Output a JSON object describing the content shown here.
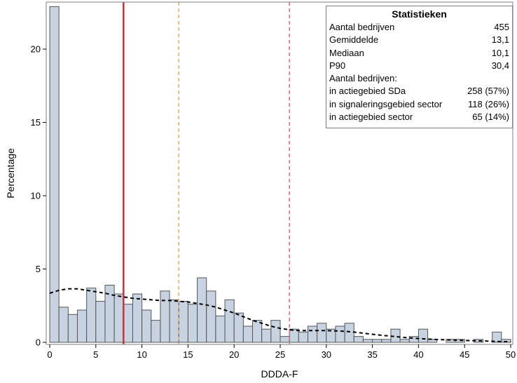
{
  "chart_data": {
    "type": "histogram",
    "xlabel": "DDDA-F",
    "ylabel": "Percentage",
    "xlim": [
      0,
      50
    ],
    "ylim": [
      0,
      23
    ],
    "x_ticks": [
      0,
      5,
      10,
      15,
      20,
      25,
      30,
      35,
      40,
      45,
      50
    ],
    "y_ticks": [
      0,
      5,
      10,
      15,
      20
    ],
    "bin_width": 1,
    "bin_starts": [
      0,
      1,
      2,
      3,
      4,
      5,
      6,
      7,
      8,
      9,
      10,
      11,
      12,
      13,
      14,
      15,
      16,
      17,
      18,
      19,
      20,
      21,
      22,
      23,
      24,
      25,
      26,
      27,
      28,
      29,
      30,
      31,
      32,
      33,
      34,
      35,
      36,
      37,
      38,
      39,
      40,
      41,
      42,
      43,
      44,
      45,
      46,
      47,
      48,
      49
    ],
    "values": [
      22.9,
      2.4,
      1.9,
      2.2,
      3.7,
      2.8,
      3.9,
      3.3,
      2.6,
      3.3,
      2.2,
      1.5,
      3.5,
      2.9,
      2.8,
      2.6,
      4.4,
      3.5,
      1.8,
      2.9,
      2.0,
      1.1,
      1.5,
      0.9,
      1.5,
      0.4,
      0.9,
      0.7,
      1.1,
      1.3,
      0.9,
      1.1,
      1.3,
      0.4,
      0.2,
      0.2,
      0.2,
      0.9,
      0.2,
      0.4,
      0.9,
      0.2,
      0.0,
      0.2,
      0.2,
      0.0,
      0.2,
      0.0,
      0.7,
      0.2
    ],
    "density_curve": {
      "x": [
        0,
        1,
        2,
        3,
        4,
        5,
        6,
        7,
        8,
        9,
        10,
        11,
        12,
        13,
        14,
        15,
        16,
        17,
        18,
        19,
        20,
        21,
        22,
        23,
        24,
        25,
        26,
        27,
        28,
        29,
        30,
        31,
        32,
        33,
        34,
        35,
        36,
        37,
        38,
        39,
        40,
        41,
        42,
        43,
        44,
        45,
        46,
        47,
        48,
        49,
        50
      ],
      "y": [
        3.35,
        3.55,
        3.65,
        3.65,
        3.55,
        3.45,
        3.35,
        3.2,
        3.1,
        3.0,
        2.95,
        2.9,
        2.85,
        2.85,
        2.8,
        2.75,
        2.65,
        2.55,
        2.4,
        2.2,
        2.0,
        1.75,
        1.5,
        1.3,
        1.1,
        0.95,
        0.85,
        0.8,
        0.8,
        0.8,
        0.8,
        0.78,
        0.75,
        0.7,
        0.62,
        0.55,
        0.48,
        0.42,
        0.36,
        0.3,
        0.26,
        0.22,
        0.19,
        0.17,
        0.15,
        0.13,
        0.11,
        0.09,
        0.07,
        0.05,
        0.04
      ],
      "style": "dashed",
      "color": "#000000"
    },
    "reference_lines": [
      {
        "x": 8,
        "color": "#e8262d",
        "style": "solid"
      },
      {
        "x": 14,
        "color": "#f4a84a",
        "style": "dashed"
      },
      {
        "x": 26,
        "color": "#f0605c",
        "style": "dashed"
      }
    ],
    "bar_fill": "#c8d3e2",
    "bar_stroke": "#555555"
  },
  "stats": {
    "title": "Statistieken",
    "rows": [
      {
        "label": "Aantal bedrijven",
        "value": "455"
      },
      {
        "label": "Gemiddelde",
        "value": "13,1"
      },
      {
        "label": "Mediaan",
        "value": "10,1"
      },
      {
        "label": "P90",
        "value": "30,4"
      },
      {
        "label": "Aantal bedrijven:",
        "value": ""
      },
      {
        "label": "in actiegebied SDa",
        "value": "258 (57%)"
      },
      {
        "label": "in signaleringsgebied sector",
        "value": "118 (26%)"
      },
      {
        "label": "in actiegebied sector",
        "value": "65 (14%)"
      }
    ]
  }
}
